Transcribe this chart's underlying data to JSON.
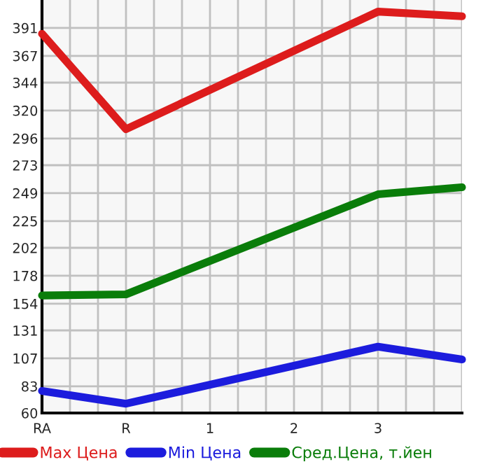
{
  "chart_data": {
    "type": "line",
    "categories": [
      "RA",
      null,
      null,
      "R",
      null,
      null,
      "1",
      null,
      null,
      "2",
      null,
      null,
      "3",
      null,
      null,
      null
    ],
    "series": [
      {
        "name": "Max Цена",
        "color": "#dd1c1c",
        "values": [
          386,
          null,
          null,
          304,
          null,
          null,
          null,
          null,
          null,
          null,
          null,
          null,
          405,
          null,
          null,
          401
        ]
      },
      {
        "name": "Min Цена",
        "color": "#1c1cdd",
        "values": [
          79,
          null,
          null,
          68,
          null,
          null,
          null,
          null,
          null,
          null,
          null,
          null,
          117,
          null,
          null,
          106
        ]
      },
      {
        "name": "Сред.Цена, т.йен",
        "color": "#0a7d0a",
        "values": [
          161,
          null,
          null,
          162,
          null,
          null,
          null,
          null,
          null,
          null,
          null,
          null,
          248,
          null,
          null,
          254
        ]
      }
    ],
    "ylim": [
      60,
      415
    ],
    "yticks": [
      60,
      83,
      107,
      131,
      154,
      178,
      202,
      225,
      249,
      273,
      296,
      320,
      344,
      367,
      391
    ],
    "grid": true,
    "legend": "bottom",
    "marker": "none",
    "line_style": "solid"
  }
}
